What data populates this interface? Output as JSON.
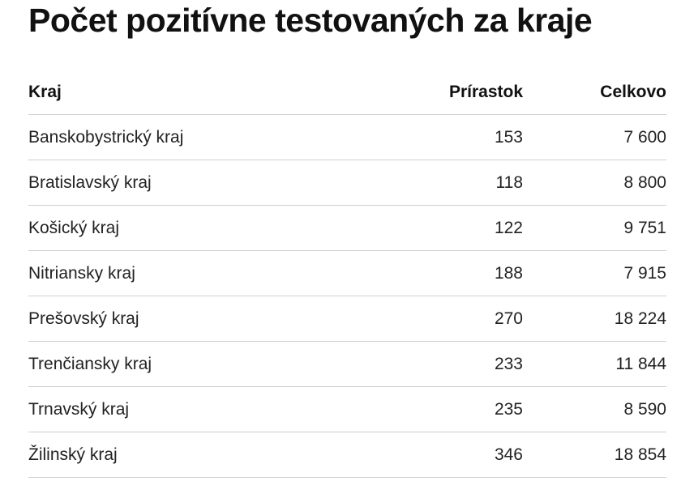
{
  "title": "Počet pozitívne testovaných za kraje",
  "table": {
    "headers": [
      "Kraj",
      "Prírastok",
      "Celkovo"
    ],
    "rows": [
      [
        "Banskobystrický kraj",
        "153",
        "7 600"
      ],
      [
        "Bratislavský kraj",
        "118",
        "8 800"
      ],
      [
        "Košický kraj",
        "122",
        "9 751"
      ],
      [
        "Nitriansky kraj",
        "188",
        "7 915"
      ],
      [
        "Prešovský kraj",
        "270",
        "18 224"
      ],
      [
        "Trenčiansky kraj",
        "233",
        "11 844"
      ],
      [
        "Trnavský kraj",
        "235",
        "8 590"
      ],
      [
        "Žilinský kraj",
        "346",
        "18 854"
      ]
    ]
  },
  "chart_data": {
    "type": "table",
    "title": "Počet pozitívne testovaných za kraje",
    "columns": [
      "Kraj",
      "Prírastok",
      "Celkovo"
    ],
    "categories": [
      "Banskobystrický kraj",
      "Bratislavský kraj",
      "Košický kraj",
      "Nitriansky kraj",
      "Prešovský kraj",
      "Trenčiansky kraj",
      "Trnavský kraj",
      "Žilinský kraj"
    ],
    "series": [
      {
        "name": "Prírastok",
        "values": [
          153,
          118,
          122,
          188,
          270,
          233,
          235,
          346
        ]
      },
      {
        "name": "Celkovo",
        "values": [
          7600,
          8800,
          9751,
          7915,
          18224,
          11844,
          8590,
          18854
        ]
      }
    ]
  }
}
